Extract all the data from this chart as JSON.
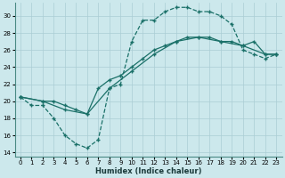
{
  "xlabel": "Humidex (Indice chaleur)",
  "bg_color": "#cce8ec",
  "grid_color": "#aacdd4",
  "line_color": "#1a7068",
  "xlim": [
    -0.5,
    23.5
  ],
  "ylim": [
    13.5,
    31.5
  ],
  "yticks": [
    14,
    16,
    18,
    20,
    22,
    24,
    26,
    28,
    30
  ],
  "xticks": [
    0,
    1,
    2,
    3,
    4,
    5,
    6,
    7,
    8,
    9,
    10,
    11,
    12,
    13,
    14,
    15,
    16,
    17,
    18,
    19,
    20,
    21,
    22,
    23
  ],
  "curve_x": [
    0,
    1,
    2,
    3,
    4,
    5,
    6,
    7,
    8,
    9,
    10,
    11,
    12,
    13,
    14,
    15,
    16,
    17,
    18,
    19,
    20,
    21,
    22,
    23
  ],
  "curve_y": [
    20.5,
    19.5,
    19.5,
    18.0,
    16.0,
    15.0,
    14.5,
    15.5,
    21.5,
    22.0,
    27.0,
    29.5,
    29.5,
    30.5,
    31.0,
    31.0,
    30.5,
    30.5,
    30.0,
    29.0,
    26.0,
    25.5,
    25.0,
    25.5
  ],
  "line2_x": [
    0,
    2,
    3,
    4,
    5,
    6,
    7,
    8,
    9,
    10,
    11,
    12,
    13,
    14,
    15,
    16,
    17,
    18,
    19,
    20,
    21,
    22,
    23
  ],
  "line2_y": [
    20.5,
    20.0,
    20.0,
    19.5,
    19.0,
    18.5,
    21.5,
    22.5,
    23.0,
    24.0,
    25.0,
    26.0,
    26.5,
    27.0,
    27.5,
    27.5,
    27.5,
    27.0,
    27.0,
    26.5,
    27.0,
    25.5,
    25.5
  ],
  "line3_x": [
    0,
    2,
    4,
    6,
    8,
    10,
    12,
    14,
    16,
    18,
    20,
    22,
    23
  ],
  "line3_y": [
    20.5,
    20.0,
    19.0,
    18.5,
    21.5,
    23.5,
    25.5,
    27.0,
    27.5,
    27.0,
    26.5,
    25.5,
    25.5
  ]
}
